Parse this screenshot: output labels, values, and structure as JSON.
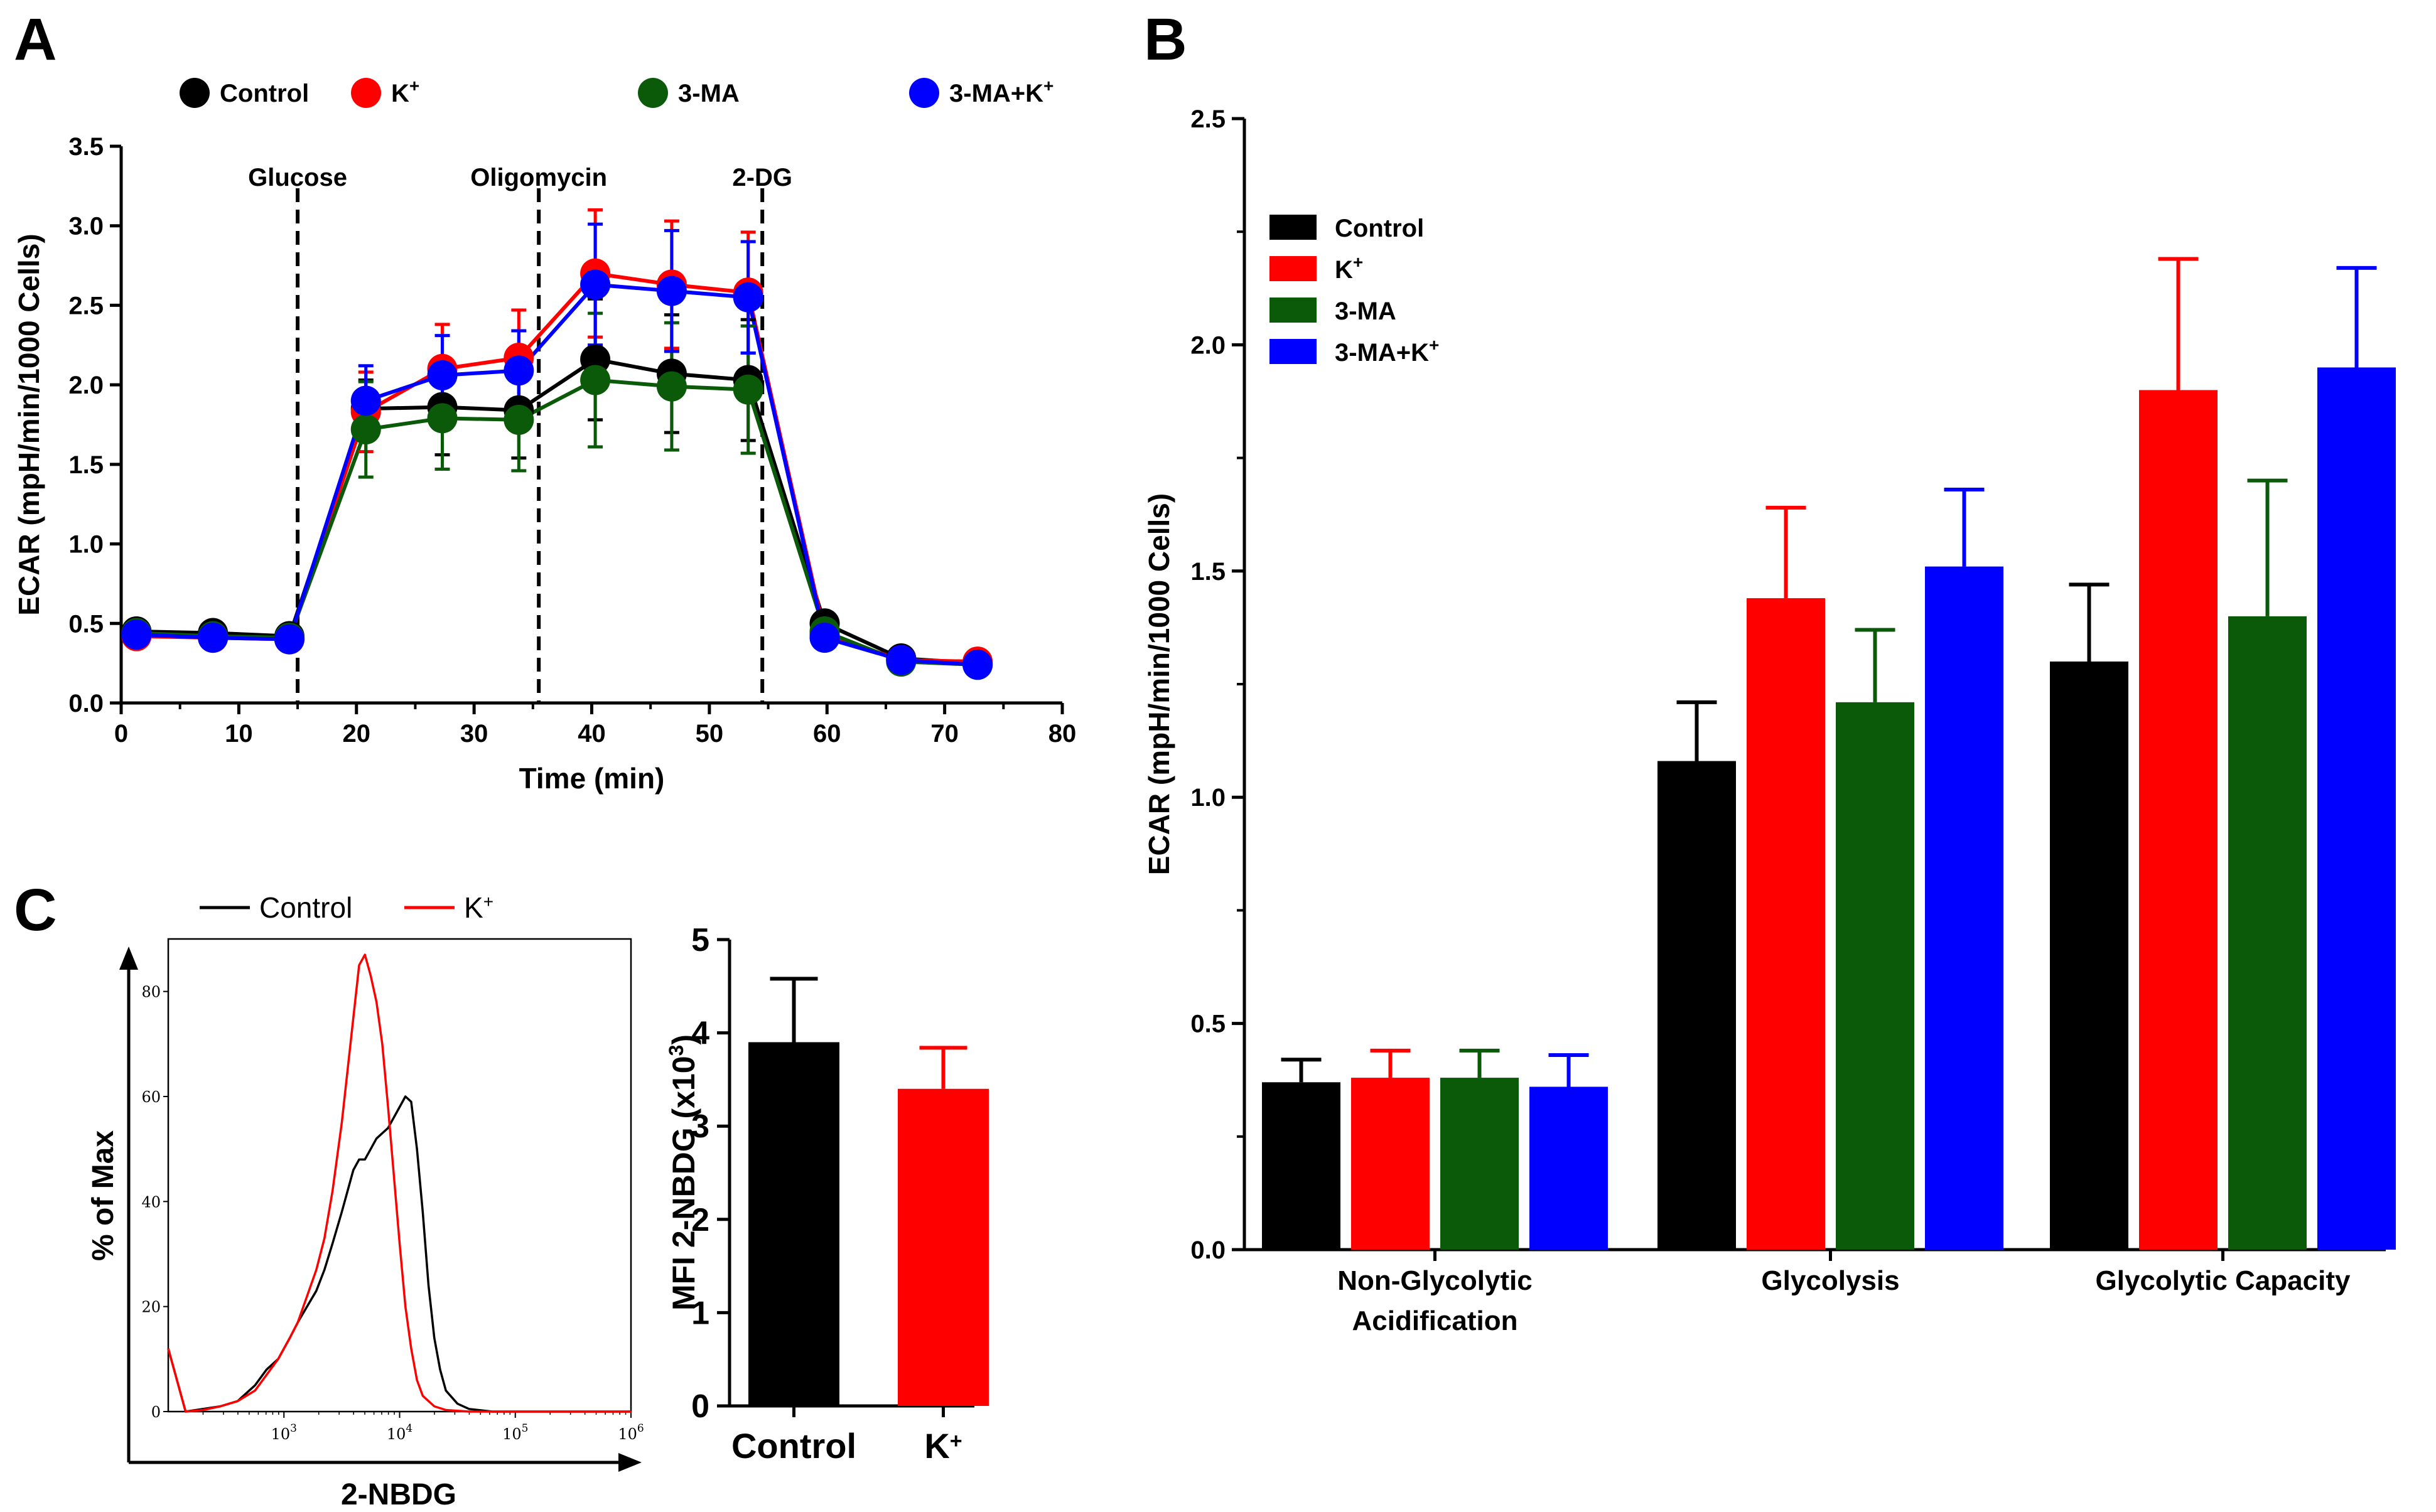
{
  "figure": {
    "panel_a_label": "A",
    "panel_b_label": "B",
    "panel_c_label": "C"
  },
  "colors": {
    "control": "#000000",
    "k": "#ff0000",
    "ma": "#0a5a0a",
    "maK": "#0000ff"
  },
  "chart_data": [
    {
      "id": "A",
      "type": "line",
      "title": "",
      "xlabel": "Time (min)",
      "ylabel": "ECAR (mpH/min/1000 Cells)",
      "xlim": [
        0,
        80
      ],
      "ylim": [
        0.0,
        3.5
      ],
      "xticks": [
        0,
        10,
        20,
        30,
        40,
        50,
        60,
        70,
        80
      ],
      "xtick_labels": [
        "0",
        "10",
        "20",
        "30",
        "40",
        "50",
        "60",
        "70",
        "80"
      ],
      "yticks": [
        0.0,
        0.5,
        1.0,
        1.5,
        2.0,
        2.5,
        3.0,
        3.5
      ],
      "ytick_labels": [
        "0.0",
        "0.5",
        "1.0",
        "1.5",
        "2.0",
        "2.5",
        "3.0",
        "3.5"
      ],
      "injections": [
        {
          "time": 15,
          "label": "Glucose"
        },
        {
          "time": 35.5,
          "label": "Oligomycin"
        },
        {
          "time": 54.5,
          "label": "2-DG"
        }
      ],
      "x": [
        1.3,
        7.8,
        14.3,
        20.8,
        27.3,
        33.8,
        40.3,
        46.8,
        53.3,
        59.8,
        66.3,
        72.8
      ],
      "series": [
        {
          "key": "control",
          "name": "Control",
          "sup": "",
          "color": "#000000",
          "values": [
            0.45,
            0.44,
            0.42,
            1.85,
            1.86,
            1.84,
            2.16,
            2.07,
            2.03,
            0.5,
            0.28,
            0.25
          ],
          "errors": [
            0.05,
            0.04,
            0.04,
            0.18,
            0.3,
            0.3,
            0.38,
            0.37,
            0.38,
            0.03,
            0.03,
            0.03
          ]
        },
        {
          "key": "k",
          "name": "K",
          "sup": "+",
          "color": "#ff0000",
          "values": [
            0.42,
            0.41,
            0.4,
            1.83,
            2.1,
            2.17,
            2.7,
            2.63,
            2.58,
            0.43,
            0.27,
            0.26
          ],
          "errors": [
            0.04,
            0.04,
            0.04,
            0.25,
            0.28,
            0.3,
            0.4,
            0.4,
            0.38,
            0.03,
            0.03,
            0.03
          ]
        },
        {
          "key": "ma",
          "name": "3-MA",
          "sup": "",
          "color": "#0a5a0a",
          "values": [
            0.44,
            0.42,
            0.41,
            1.72,
            1.79,
            1.78,
            2.03,
            1.99,
            1.97,
            0.45,
            0.26,
            0.24
          ],
          "errors": [
            0.04,
            0.04,
            0.04,
            0.3,
            0.32,
            0.32,
            0.42,
            0.4,
            0.4,
            0.03,
            0.03,
            0.03
          ]
        },
        {
          "key": "maK",
          "name": "3-MA+K",
          "sup": "+",
          "color": "#0000ff",
          "values": [
            0.43,
            0.41,
            0.4,
            1.9,
            2.06,
            2.09,
            2.63,
            2.59,
            2.55,
            0.41,
            0.27,
            0.24
          ],
          "errors": [
            0.04,
            0.04,
            0.04,
            0.22,
            0.25,
            0.25,
            0.38,
            0.38,
            0.35,
            0.03,
            0.03,
            0.03
          ]
        }
      ]
    },
    {
      "id": "B",
      "type": "bar",
      "title": "",
      "xlabel": "",
      "ylabel": "ECAR (mpH/min/1000 Cells)",
      "ylim": [
        0.0,
        2.5
      ],
      "yticks": [
        0.0,
        0.5,
        1.0,
        1.5,
        2.0,
        2.5
      ],
      "ytick_labels": [
        "0.0",
        "0.5",
        "1.0",
        "1.5",
        "2.0",
        "2.5"
      ],
      "categories": [
        [
          "Non-Glycolytic",
          "Acidification"
        ],
        [
          "Glycolysis"
        ],
        [
          "Glycolytic Capacity"
        ]
      ],
      "series": [
        {
          "key": "control",
          "name": "Control",
          "sup": "",
          "color": "#000000",
          "values": [
            0.37,
            1.08,
            1.3
          ],
          "errors": [
            0.05,
            0.13,
            0.17
          ]
        },
        {
          "key": "k",
          "name": "K",
          "sup": "+",
          "color": "#ff0000",
          "values": [
            0.38,
            1.44,
            1.9
          ],
          "errors": [
            0.06,
            0.2,
            0.29
          ]
        },
        {
          "key": "ma",
          "name": "3-MA",
          "sup": "",
          "color": "#0a5a0a",
          "values": [
            0.38,
            1.21,
            1.4
          ],
          "errors": [
            0.06,
            0.16,
            0.3
          ]
        },
        {
          "key": "maK",
          "name": "3-MA+K",
          "sup": "+",
          "color": "#0000ff",
          "values": [
            0.36,
            1.51,
            1.95
          ],
          "errors": [
            0.07,
            0.17,
            0.22
          ]
        }
      ],
      "legend_position": "top-left"
    },
    {
      "id": "C-histogram",
      "type": "line",
      "xlabel": "2-NBDG",
      "ylabel": "% of Max",
      "xscale": "log",
      "xlim": [
        100,
        1000000
      ],
      "ylim": [
        0,
        90
      ],
      "yticks": [
        0,
        20,
        40,
        60,
        80
      ],
      "ytick_labels": [
        "0",
        "20",
        "40",
        "60",
        "80"
      ],
      "xticks": [
        1000,
        10000,
        100000,
        1000000
      ],
      "xtick_base": "10",
      "xtick_exps": [
        "3",
        "4",
        "5",
        "6"
      ],
      "series": [
        {
          "key": "control",
          "name": "Control",
          "color": "#000000",
          "log10x": [
            2.0,
            2.15,
            2.3,
            2.45,
            2.6,
            2.75,
            2.85,
            2.95,
            3.05,
            3.12,
            3.2,
            3.28,
            3.35,
            3.42,
            3.5,
            3.55,
            3.6,
            3.65,
            3.7,
            3.75,
            3.8,
            3.85,
            3.9,
            3.95,
            4.0,
            4.05,
            4.1,
            4.15,
            4.2,
            4.25,
            4.3,
            4.35,
            4.4,
            4.5,
            4.6,
            4.8,
            5.0,
            6.0
          ],
          "pct": [
            12,
            0,
            0.5,
            1,
            2,
            5,
            8,
            10,
            14,
            17,
            20,
            23,
            27,
            32,
            38,
            42,
            46,
            48,
            48,
            50,
            52,
            53,
            54,
            56,
            58,
            60,
            59,
            50,
            38,
            24,
            14,
            8,
            4,
            1.5,
            0.5,
            0,
            0,
            0
          ]
        },
        {
          "key": "k",
          "name": "K+",
          "color": "#ff0000",
          "log10x": [
            2.0,
            2.15,
            2.3,
            2.45,
            2.6,
            2.75,
            2.85,
            2.95,
            3.05,
            3.12,
            3.2,
            3.28,
            3.35,
            3.42,
            3.5,
            3.55,
            3.6,
            3.65,
            3.7,
            3.75,
            3.8,
            3.85,
            3.9,
            3.95,
            4.0,
            4.05,
            4.1,
            4.15,
            4.2,
            4.3,
            4.4,
            4.6,
            5.0,
            6.0
          ],
          "pct": [
            12,
            0,
            0.3,
            1,
            2,
            4,
            7,
            10,
            14,
            17,
            22,
            27,
            33,
            42,
            55,
            65,
            75,
            85,
            87,
            83,
            78,
            70,
            58,
            45,
            32,
            20,
            12,
            6,
            3,
            1,
            0.3,
            0,
            0,
            0
          ]
        }
      ],
      "legend": [
        {
          "key": "control",
          "label": "Control",
          "sup": "",
          "color": "#000000"
        },
        {
          "key": "k",
          "label": "K",
          "sup": "+",
          "color": "#ff0000"
        }
      ],
      "legend_position": "top"
    },
    {
      "id": "C-bar",
      "type": "bar",
      "ylabel_main": "MFI 2-NBDG (x10",
      "ylabel_sup": "3",
      "ylabel_end": ")",
      "ylim": [
        0,
        5
      ],
      "yticks": [
        0,
        1,
        2,
        3,
        4,
        5
      ],
      "ytick_labels": [
        "0",
        "1",
        "2",
        "3",
        "4",
        "5"
      ],
      "categories": [
        "Control",
        "K"
      ],
      "category_sups": [
        "",
        "+"
      ],
      "values": [
        3.9,
        3.4
      ],
      "errors": [
        0.68,
        0.44
      ],
      "colors": [
        "#000000",
        "#ff0000"
      ]
    }
  ]
}
